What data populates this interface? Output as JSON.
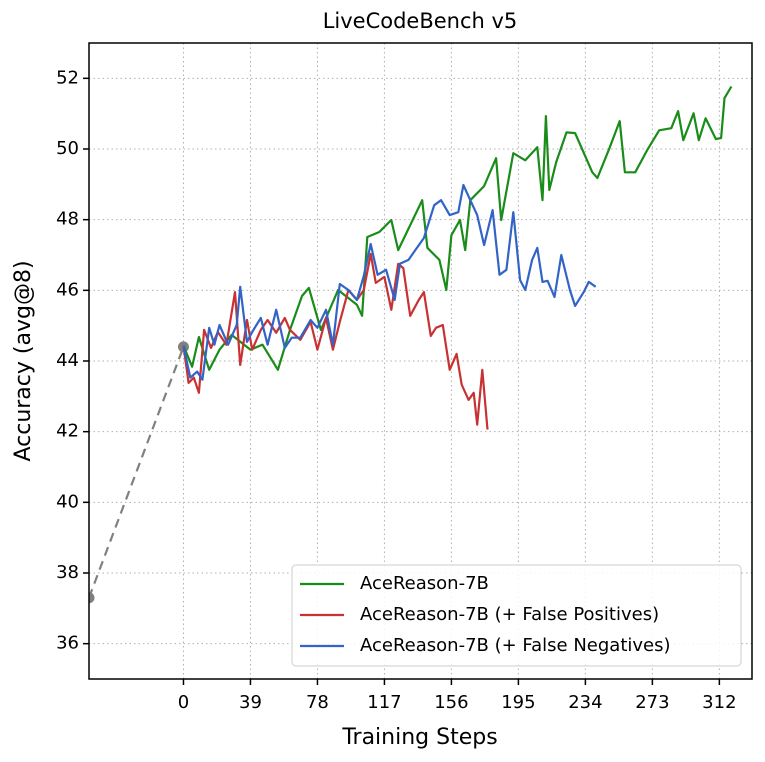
{
  "chart_data": {
    "type": "line",
    "title": "LiveCodeBench v5",
    "xlabel": "Training Steps",
    "ylabel": "Accuracy (avg@8)",
    "xlim": [
      -55,
      331
    ],
    "ylim": [
      35,
      53
    ],
    "xticks": [
      0,
      39,
      78,
      117,
      156,
      195,
      234,
      273,
      312
    ],
    "yticks": [
      36,
      38,
      40,
      42,
      44,
      46,
      48,
      50,
      52
    ],
    "grid": true,
    "legend": "lower right",
    "baseline": {
      "color": "#808080",
      "dashed": true,
      "markers": true,
      "x": [
        -55,
        0
      ],
      "values": [
        37.3,
        44.4
      ]
    },
    "series": [
      {
        "name": "AceReason-7B",
        "color": "#1a8c1a",
        "x": [
          0,
          5,
          9,
          15,
          21,
          28,
          39,
          46,
          55,
          62,
          69,
          73,
          80,
          90,
          101,
          104,
          107,
          114,
          121,
          125,
          139,
          142,
          149,
          153,
          156,
          161,
          164,
          167,
          175,
          182,
          185,
          192,
          199,
          206,
          209,
          211,
          213,
          217,
          223,
          228,
          238,
          241,
          248,
          254,
          257,
          263,
          270,
          277,
          284,
          288,
          291,
          297,
          300,
          304,
          310,
          313,
          315,
          319
        ],
        "values": [
          44.43,
          43.84,
          44.68,
          43.75,
          44.32,
          44.74,
          44.32,
          44.46,
          43.75,
          44.88,
          45.84,
          46.07,
          44.88,
          46.01,
          45.59,
          45.28,
          47.51,
          47.65,
          47.99,
          47.14,
          48.55,
          47.2,
          46.86,
          46.01,
          47.56,
          47.99,
          47.14,
          48.55,
          48.95,
          49.74,
          47.99,
          49.88,
          49.68,
          50.05,
          48.55,
          50.93,
          48.84,
          49.63,
          50.47,
          50.45,
          49.34,
          49.18,
          50.02,
          50.79,
          49.34,
          49.34,
          49.97,
          50.53,
          50.59,
          51.07,
          50.25,
          51.01,
          50.25,
          50.87,
          50.28,
          50.31,
          51.44,
          51.77
        ]
      },
      {
        "name": "AceReason-7B (+ False Positives)",
        "color": "#c83232",
        "x": [
          0,
          3,
          6,
          9,
          12,
          16,
          20,
          25,
          30,
          33,
          37,
          40,
          45,
          49,
          54,
          59,
          62,
          68,
          74,
          78,
          83,
          87,
          91,
          96,
          101,
          105,
          109,
          112,
          117,
          121,
          125,
          128,
          132,
          137,
          140,
          144,
          147,
          151,
          155,
          159,
          162,
          166,
          169,
          171,
          174,
          177
        ],
        "values": [
          44.43,
          43.38,
          43.53,
          43.1,
          44.88,
          44.37,
          44.82,
          44.46,
          45.95,
          43.89,
          45.16,
          44.32,
          44.88,
          45.16,
          44.8,
          45.22,
          44.88,
          44.6,
          45.11,
          44.32,
          45.22,
          44.32,
          45.11,
          46.01,
          45.73,
          46.01,
          47.03,
          46.21,
          46.38,
          45.45,
          46.75,
          46.63,
          45.28,
          45.73,
          45.95,
          44.71,
          44.94,
          45.02,
          43.75,
          44.2,
          43.33,
          42.9,
          43.1,
          42.2,
          43.75,
          42.06
        ]
      },
      {
        "name": "AceReason-7B (+ False Negatives)",
        "color": "#3264c8",
        "x": [
          0,
          4,
          8,
          11,
          15,
          18,
          21,
          26,
          31,
          33,
          37,
          40,
          45,
          49,
          54,
          59,
          63,
          68,
          74,
          78,
          83,
          87,
          91,
          96,
          101,
          105,
          109,
          113,
          118,
          123,
          126,
          131,
          135,
          140,
          146,
          150,
          155,
          160,
          163,
          167,
          171,
          175,
          180,
          184,
          188,
          192,
          196,
          199,
          203,
          206,
          209,
          212,
          216,
          220,
          225,
          228,
          233,
          236,
          240
        ],
        "values": [
          44.43,
          43.53,
          43.7,
          43.47,
          44.94,
          44.46,
          45.02,
          44.46,
          45.02,
          46.1,
          44.54,
          44.82,
          45.22,
          44.46,
          45.45,
          44.37,
          44.66,
          44.66,
          45.16,
          44.94,
          45.45,
          44.46,
          46.18,
          46.01,
          45.73,
          46.41,
          47.31,
          46.44,
          46.58,
          45.73,
          46.75,
          46.86,
          47.14,
          47.48,
          48.41,
          48.55,
          48.13,
          48.21,
          48.98,
          48.55,
          48.13,
          47.28,
          48.27,
          46.44,
          46.58,
          48.21,
          46.29,
          46.01,
          46.86,
          47.2,
          46.24,
          46.27,
          45.81,
          47.0,
          46.01,
          45.56,
          45.95,
          46.24,
          46.1
        ]
      }
    ]
  }
}
